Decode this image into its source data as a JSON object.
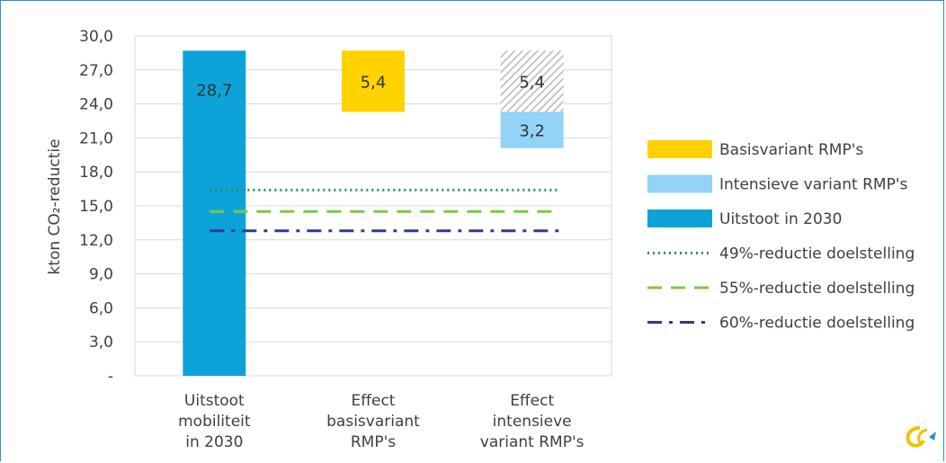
{
  "chart_data": {
    "type": "bar",
    "title": "",
    "ylabel": "kton CO₂-reductie",
    "ylim": [
      0,
      30
    ],
    "yticks": [
      "-",
      "3,0",
      "6,0",
      "9,0",
      "12,0",
      "15,0",
      "18,0",
      "21,0",
      "24,0",
      "27,0",
      "30,0"
    ],
    "categories": [
      [
        "Uitstoot",
        "mobiliteit",
        "in 2030"
      ],
      [
        "Effect",
        "basisvariant",
        "RMP's"
      ],
      [
        "Effect",
        "intensieve",
        "variant RMP's"
      ]
    ],
    "bars": [
      {
        "category": 0,
        "series": "Uitstoot in 2030",
        "bottom": 0,
        "value": 28.7,
        "label": "28,7",
        "color": "#0ea3d8",
        "pattern": "solid"
      },
      {
        "category": 1,
        "series": "Basisvariant RMP's",
        "bottom": 23.3,
        "value": 5.4,
        "label": "5,4",
        "color": "#ffd200",
        "pattern": "solid"
      },
      {
        "category": 2,
        "series": "Basisvariant RMP's",
        "bottom": 23.3,
        "value": 5.4,
        "label": "5,4",
        "color": "#b8b8b8",
        "pattern": "hatched"
      },
      {
        "category": 2,
        "series": "Intensieve variant RMP's",
        "bottom": 20.1,
        "value": 3.2,
        "label": "3,2",
        "color": "#92d3f6",
        "pattern": "solid"
      }
    ],
    "reference_lines": [
      {
        "name": "49%-reductie doelstelling",
        "value": 16.4,
        "color": "#1f9a48",
        "style": "dotted"
      },
      {
        "name": "55%-reductie doelstelling",
        "value": 14.5,
        "color": "#7ac943",
        "style": "dashed"
      },
      {
        "name": "60%-reductie doelstelling",
        "value": 12.8,
        "color": "#2e3b8c",
        "style": "dashdot"
      }
    ],
    "legend": {
      "position": "right",
      "items": [
        {
          "label": "Basisvariant RMP's",
          "color": "#ffd200",
          "kind": "box"
        },
        {
          "label": "Intensieve variant RMP's",
          "color": "#92d3f6",
          "kind": "box"
        },
        {
          "label": "Uitstoot in 2030",
          "color": "#0ea3d8",
          "kind": "box"
        },
        {
          "label": "49%-reductie doelstelling",
          "color": "#1f9a48",
          "kind": "dotted"
        },
        {
          "label": "55%-reductie doelstelling",
          "color": "#7ac943",
          "kind": "dashed"
        },
        {
          "label": "60%-reductie doelstelling",
          "color": "#2e3b8c",
          "kind": "dashdot"
        }
      ]
    },
    "grid": true
  },
  "logo": {
    "name": "publisher-logo-icon",
    "colors": [
      "#f2c200",
      "#2a8fd0"
    ]
  }
}
